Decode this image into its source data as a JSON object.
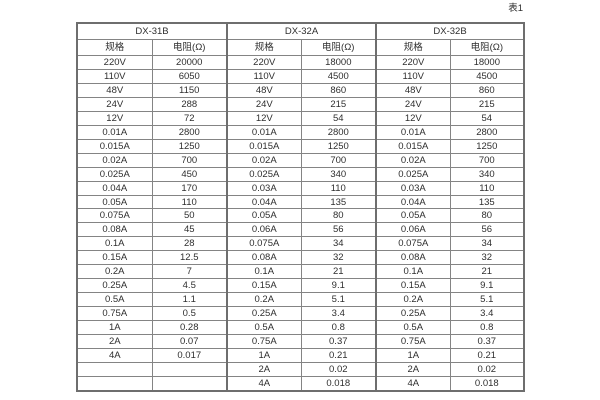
{
  "caption": "表1",
  "colors": {
    "background": "#ffffff",
    "border": "#848484",
    "border_strong": "#6e6e6e",
    "text": "#2e2e2e"
  },
  "chart_data": {
    "type": "table",
    "title": "表1",
    "column_groups": [
      "DX-31B",
      "DX-32A",
      "DX-32B"
    ],
    "sub_headers": [
      "规格",
      "电阻(Ω)",
      "规格",
      "电阻(Ω)",
      "规格",
      "电阻(Ω)"
    ],
    "rows": [
      [
        "220V",
        "20000",
        "220V",
        "18000",
        "220V",
        "18000"
      ],
      [
        "110V",
        "6050",
        "110V",
        "4500",
        "110V",
        "4500"
      ],
      [
        "48V",
        "1150",
        "48V",
        "860",
        "48V",
        "860"
      ],
      [
        "24V",
        "288",
        "24V",
        "215",
        "24V",
        "215"
      ],
      [
        "12V",
        "72",
        "12V",
        "54",
        "12V",
        "54"
      ],
      [
        "0.01A",
        "2800",
        "0.01A",
        "2800",
        "0.01A",
        "2800"
      ],
      [
        "0.015A",
        "1250",
        "0.015A",
        "1250",
        "0.015A",
        "1250"
      ],
      [
        "0.02A",
        "700",
        "0.02A",
        "700",
        "0.02A",
        "700"
      ],
      [
        "0.025A",
        "450",
        "0.025A",
        "340",
        "0.025A",
        "340"
      ],
      [
        "0.04A",
        "170",
        "0.03A",
        "110",
        "0.03A",
        "110"
      ],
      [
        "0.05A",
        "110",
        "0.04A",
        "135",
        "0.04A",
        "135"
      ],
      [
        "0.075A",
        "50",
        "0.05A",
        "80",
        "0.05A",
        "80"
      ],
      [
        "0.08A",
        "45",
        "0.06A",
        "56",
        "0.06A",
        "56"
      ],
      [
        "0.1A",
        "28",
        "0.075A",
        "34",
        "0.075A",
        "34"
      ],
      [
        "0.15A",
        "12.5",
        "0.08A",
        "32",
        "0.08A",
        "32"
      ],
      [
        "0.2A",
        "7",
        "0.1A",
        "21",
        "0.1A",
        "21"
      ],
      [
        "0.25A",
        "4.5",
        "0.15A",
        "9.1",
        "0.15A",
        "9.1"
      ],
      [
        "0.5A",
        "1.1",
        "0.2A",
        "5.1",
        "0.2A",
        "5.1"
      ],
      [
        "0.75A",
        "0.5",
        "0.25A",
        "3.4",
        "0.25A",
        "3.4"
      ],
      [
        "1A",
        "0.28",
        "0.5A",
        "0.8",
        "0.5A",
        "0.8"
      ],
      [
        "2A",
        "0.07",
        "0.75A",
        "0.37",
        "0.75A",
        "0.37"
      ],
      [
        "4A",
        "0.017",
        "1A",
        "0.21",
        "1A",
        "0.21"
      ],
      [
        "",
        "",
        "2A",
        "0.02",
        "2A",
        "0.02"
      ],
      [
        "",
        "",
        "4A",
        "0.018",
        "4A",
        "0.018"
      ]
    ]
  }
}
